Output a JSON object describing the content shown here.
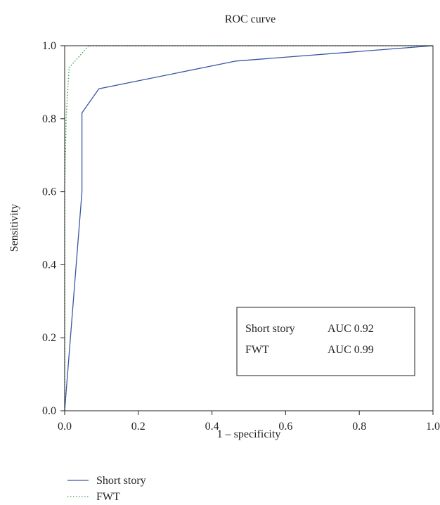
{
  "chart_data": {
    "type": "line",
    "title": "ROC curve",
    "xlabel": "1 – specificity",
    "ylabel": "Sensitivity",
    "xlim": [
      0,
      1
    ],
    "ylim": [
      0,
      1
    ],
    "xticks": [
      "0.0",
      "0.2",
      "0.4",
      "0.6",
      "0.8",
      "1.0"
    ],
    "yticks": [
      "0.0",
      "0.2",
      "0.4",
      "0.6",
      "0.8",
      "1.0"
    ],
    "grid": false,
    "legend_position": "below",
    "series": [
      {
        "name": "Short story",
        "color": "#3a56a5",
        "style": "solid",
        "points": [
          [
            0,
            0
          ],
          [
            0.047,
            0.6
          ],
          [
            0.047,
            0.816
          ],
          [
            0.093,
            0.882
          ],
          [
            0.465,
            0.958
          ],
          [
            1.0,
            1.0
          ]
        ]
      },
      {
        "name": "FWT",
        "color": "#39a84a",
        "style": "dotted",
        "points": [
          [
            0,
            0
          ],
          [
            0,
            0.6
          ],
          [
            0.004,
            0.8
          ],
          [
            0.012,
            0.94
          ],
          [
            0.03,
            0.96
          ],
          [
            0.065,
            1.0
          ],
          [
            1.0,
            1.0
          ]
        ]
      }
    ],
    "auc_table": [
      {
        "label": "Short story",
        "auc": "AUC 0.92"
      },
      {
        "label": "FWT",
        "auc": "AUC 0.99"
      }
    ]
  }
}
